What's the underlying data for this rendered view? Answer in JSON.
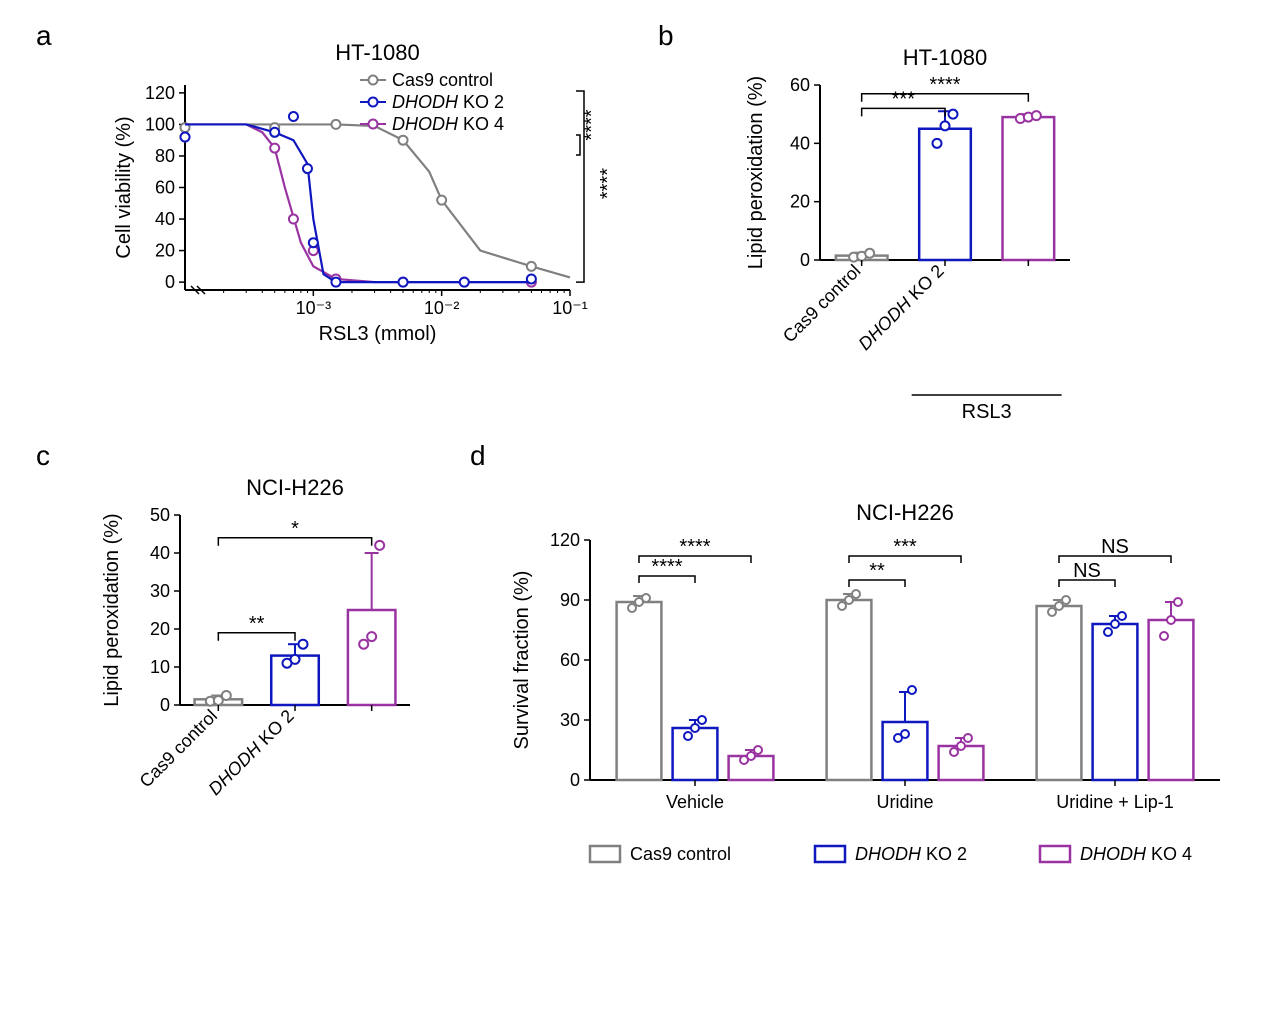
{
  "labels": {
    "a": "a",
    "b": "b",
    "c": "c",
    "d": "d"
  },
  "colors": {
    "gray": "#808080",
    "blue": "#0f17bf",
    "purple": "#9a33a2",
    "axis": "#000000",
    "bg": "#ffffff"
  },
  "series_labels": {
    "cas9": "Cas9 control",
    "ko2_pre": "DHODH",
    "ko2_suf": " KO 2",
    "ko4_pre": "DHODH",
    "ko4_suf": " KO 4"
  },
  "panel_a": {
    "title": "HT-1080",
    "x_axis_title": "RSL3 (mmol)",
    "y_axis_title": "Cell viability (%)",
    "y_ticks": [
      0,
      20,
      40,
      60,
      80,
      100,
      120
    ],
    "x_ticks": [
      0.001,
      0.01,
      0.1
    ],
    "x_tick_labels": [
      "10⁻³",
      "10⁻²",
      "10⁻¹"
    ],
    "xlim": [
      0.0001,
      0.1
    ],
    "ylim": [
      -5,
      125
    ],
    "marker_size": 4.5,
    "line_width": 2.2,
    "sig_right": [
      "****",
      "****"
    ],
    "curves": {
      "cas9": {
        "color": "#808080",
        "x": [
          0.0001,
          0.0003,
          0.0005,
          0.001,
          0.0015,
          0.003,
          0.005,
          0.008,
          0.01,
          0.02,
          0.05,
          0.1
        ],
        "y": [
          100,
          100,
          100,
          100,
          100,
          99,
          90,
          70,
          52,
          20,
          10,
          3
        ],
        "pts": [
          [
            0.0001,
            98
          ],
          [
            0.0005,
            98
          ],
          [
            0.0015,
            100
          ],
          [
            0.005,
            90
          ],
          [
            0.01,
            52
          ],
          [
            0.05,
            10
          ]
        ]
      },
      "ko2": {
        "color": "#0f17bf",
        "x": [
          0.0001,
          0.0003,
          0.0005,
          0.0007,
          0.0009,
          0.001,
          0.0012,
          0.0015,
          0.003,
          0.01,
          0.05
        ],
        "y": [
          100,
          100,
          95,
          90,
          75,
          40,
          5,
          0,
          0,
          0,
          0
        ],
        "pts": [
          [
            0.0001,
            92
          ],
          [
            0.0005,
            95
          ],
          [
            0.0007,
            105
          ],
          [
            0.0009,
            72
          ],
          [
            0.001,
            25
          ],
          [
            0.0015,
            0
          ],
          [
            0.005,
            0
          ],
          [
            0.015,
            0
          ],
          [
            0.05,
            2
          ]
        ]
      },
      "ko4": {
        "color": "#9a33a2",
        "x": [
          0.0001,
          0.0003,
          0.0004,
          0.0005,
          0.0006,
          0.0008,
          0.001,
          0.0015,
          0.003,
          0.01,
          0.05
        ],
        "y": [
          100,
          100,
          95,
          85,
          60,
          25,
          10,
          2,
          0,
          0,
          0
        ],
        "pts": [
          [
            0.0001,
            92
          ],
          [
            0.0005,
            85
          ],
          [
            0.0007,
            40
          ],
          [
            0.001,
            20
          ],
          [
            0.0015,
            2
          ],
          [
            0.005,
            0
          ],
          [
            0.015,
            0
          ],
          [
            0.05,
            0
          ]
        ]
      }
    }
  },
  "panel_b": {
    "title": "HT-1080",
    "y_axis_title": "Lipid peroxidation (%)",
    "y_ticks": [
      0,
      20,
      40,
      60
    ],
    "ylim": [
      0,
      60
    ],
    "x_group_label": "RSL3",
    "bar_width": 0.62,
    "categories": [
      "Cas9 control",
      "DHODH KO 2",
      "DHODH KO 4"
    ],
    "bars": [
      {
        "label": "cas9",
        "mean": 1.5,
        "err": 1,
        "color": "#808080",
        "pts": [
          1,
          1.3,
          2.3
        ]
      },
      {
        "label": "ko2",
        "mean": 45,
        "err": 6,
        "color": "#0f17bf",
        "pts": [
          40,
          46,
          50
        ]
      },
      {
        "label": "ko4",
        "mean": 49,
        "err": 1,
        "color": "#9a33a2",
        "pts": [
          48.5,
          49,
          49.5
        ]
      }
    ],
    "sig": [
      [
        "***",
        52
      ],
      [
        "****",
        57
      ]
    ]
  },
  "panel_c": {
    "title": "NCI-H226",
    "y_axis_title": "Lipid peroxidation (%)",
    "y_ticks": [
      0,
      10,
      20,
      30,
      40,
      50
    ],
    "ylim": [
      0,
      50
    ],
    "bar_width": 0.62,
    "categories": [
      "Cas9 control",
      "DHODH KO 2",
      "DHODH KO 4"
    ],
    "bars": [
      {
        "label": "cas9",
        "mean": 1.5,
        "err": 1,
        "color": "#808080",
        "pts": [
          1,
          1.2,
          2.5
        ]
      },
      {
        "label": "ko2",
        "mean": 13,
        "err": 3,
        "color": "#0f17bf",
        "pts": [
          11,
          12,
          16
        ]
      },
      {
        "label": "ko4",
        "mean": 25,
        "err": 15,
        "color": "#9a33a2",
        "pts": [
          16,
          18,
          42
        ]
      }
    ],
    "sig": [
      [
        "**",
        19
      ],
      [
        "*",
        44
      ]
    ]
  },
  "panel_d": {
    "title": "NCI-H226",
    "y_axis_title": "Survival fraction (%)",
    "y_ticks": [
      0,
      30,
      60,
      90,
      120
    ],
    "ylim": [
      0,
      120
    ],
    "bar_width": 0.25,
    "x_groups": [
      "Vehicle",
      "Uridine",
      "Uridine + Lip-1"
    ],
    "groups": [
      {
        "label": "Vehicle",
        "bars": [
          {
            "mean": 89,
            "err": 3,
            "color": "#808080",
            "pts": [
              86,
              89,
              91
            ]
          },
          {
            "mean": 26,
            "err": 4,
            "color": "#0f17bf",
            "pts": [
              22,
              26,
              30
            ]
          },
          {
            "mean": 12,
            "err": 3,
            "color": "#9a33a2",
            "pts": [
              10,
              12,
              15
            ]
          }
        ],
        "sig": [
          [
            "****",
            102
          ],
          [
            "****",
            112
          ]
        ]
      },
      {
        "label": "Uridine",
        "bars": [
          {
            "mean": 90,
            "err": 3,
            "color": "#808080",
            "pts": [
              87,
              90,
              93
            ]
          },
          {
            "mean": 29,
            "err": 15,
            "color": "#0f17bf",
            "pts": [
              21,
              23,
              45
            ]
          },
          {
            "mean": 17,
            "err": 4,
            "color": "#9a33a2",
            "pts": [
              14,
              17,
              21
            ]
          }
        ],
        "sig": [
          [
            "**",
            100
          ],
          [
            "***",
            112
          ]
        ]
      },
      {
        "label": "Uridine + Lip-1",
        "bars": [
          {
            "mean": 87,
            "err": 3,
            "color": "#808080",
            "pts": [
              84,
              87,
              90
            ]
          },
          {
            "mean": 78,
            "err": 4,
            "color": "#0f17bf",
            "pts": [
              74,
              78,
              82
            ]
          },
          {
            "mean": 80,
            "err": 9,
            "color": "#9a33a2",
            "pts": [
              72,
              80,
              89
            ]
          }
        ],
        "sig": [
          [
            "NS",
            100
          ],
          [
            "NS",
            112
          ]
        ]
      }
    ],
    "legend": [
      {
        "color": "#808080",
        "text": "Cas9 control",
        "ital": false
      },
      {
        "color": "#0f17bf",
        "text": "DHODH KO 2",
        "ital": true,
        "pre": "DHODH",
        "suf": " KO 2"
      },
      {
        "color": "#9a33a2",
        "text": "DHODH KO 4",
        "ital": true,
        "pre": "DHODH",
        "suf": " KO 4"
      }
    ]
  }
}
